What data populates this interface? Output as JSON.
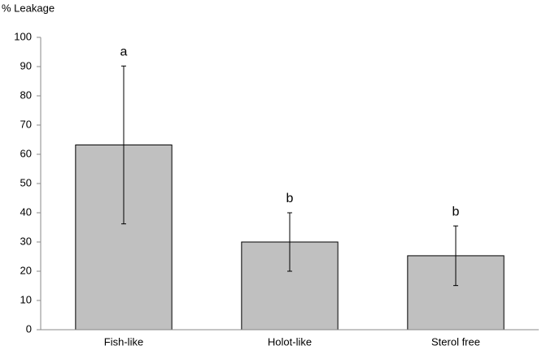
{
  "chart_data": {
    "type": "bar",
    "ylabel": "% Leakage",
    "categories": [
      "Fish-like",
      "Holot-like",
      "Sterol free"
    ],
    "values": [
      63.2,
      30,
      25.3
    ],
    "errors": [
      27,
      10,
      10.2
    ],
    "letters": [
      "a",
      "b",
      "b"
    ],
    "color": "#c0c0c0",
    "ylim": [
      0,
      100
    ],
    "yticks": [
      0,
      10,
      20,
      30,
      40,
      50,
      60,
      70,
      80,
      90,
      100
    ],
    "grid": false
  }
}
